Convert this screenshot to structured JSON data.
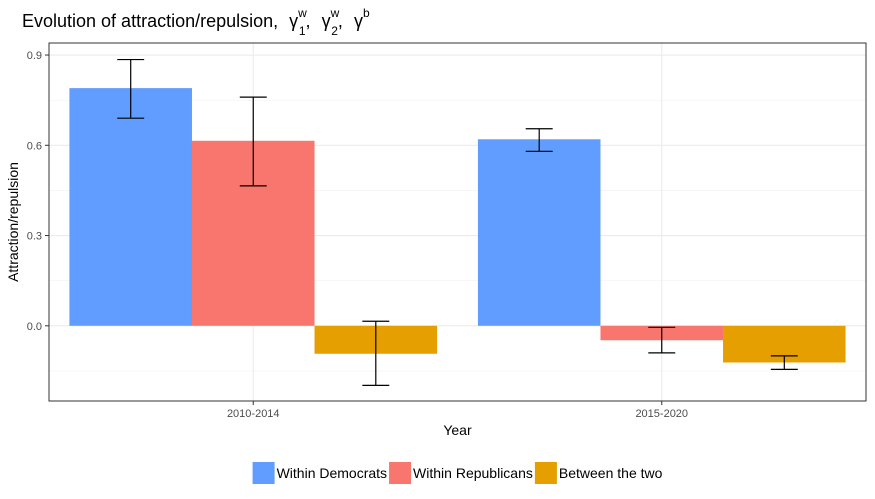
{
  "chart_data": {
    "type": "bar",
    "title": {
      "text": "Evolution of attraction/repulsion,",
      "symbols": [
        {
          "base": "γ",
          "sup": "w",
          "sub": "1"
        },
        {
          "base": "γ",
          "sup": "w",
          "sub": "2"
        },
        {
          "base": "γ",
          "sup": "b",
          "sub": ""
        }
      ],
      "separator": ","
    },
    "xlabel": "Year",
    "ylabel": "Attraction/repulsion",
    "categories": [
      "2010-2014",
      "2015-2020"
    ],
    "ylim": [
      -0.25,
      0.94
    ],
    "yticks": [
      0.0,
      0.3,
      0.6,
      0.9
    ],
    "ytick_labels": [
      "0.0",
      "0.3",
      "0.6",
      "0.9"
    ],
    "grid": true,
    "legend_position": "bottom",
    "series": [
      {
        "name": "Within Democrats",
        "color": "#619CFF",
        "values": [
          0.79,
          0.62
        ],
        "error_low": [
          0.69,
          0.58
        ],
        "error_high": [
          0.885,
          0.655
        ]
      },
      {
        "name": "Within Republicans",
        "color": "#F8766D",
        "values": [
          0.615,
          -0.048
        ],
        "error_low": [
          0.465,
          -0.09
        ],
        "error_high": [
          0.76,
          -0.005
        ]
      },
      {
        "name": "Between the two",
        "color": "#E69F00",
        "values": [
          -0.093,
          -0.122
        ],
        "error_low": [
          -0.198,
          -0.145
        ],
        "error_high": [
          0.015,
          -0.1
        ]
      }
    ]
  }
}
